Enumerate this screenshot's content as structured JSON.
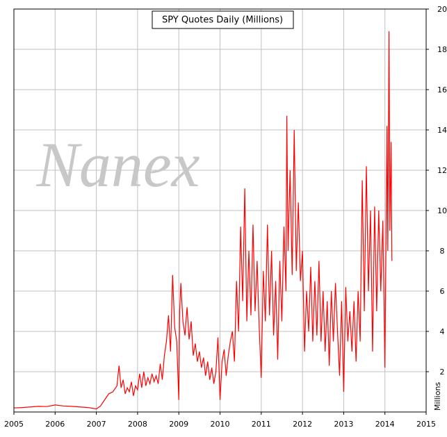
{
  "chart_data": {
    "type": "line",
    "title": "SPY Quotes Daily (Millions)",
    "watermark": "Nanex",
    "ylabel": "Millions",
    "color": "#ff0000",
    "grid": true,
    "xlim": [
      2005,
      2015
    ],
    "xticks": [
      2005,
      2006,
      2007,
      2008,
      2009,
      2010,
      2011,
      2012,
      2013,
      2014,
      2015
    ],
    "ylim": [
      0,
      20
    ],
    "yticks": [
      2,
      4,
      6,
      8,
      10,
      12,
      14,
      16,
      18,
      20
    ],
    "x": [
      2005.0,
      2005.2,
      2005.4,
      2005.6,
      2005.8,
      2006.0,
      2006.2,
      2006.4,
      2006.6,
      2006.8,
      2007.0,
      2007.1,
      2007.2,
      2007.3,
      2007.4,
      2007.5,
      2007.55,
      2007.6,
      2007.65,
      2007.7,
      2007.75,
      2007.8,
      2007.85,
      2007.9,
      2007.95,
      2008.0,
      2008.05,
      2008.1,
      2008.15,
      2008.2,
      2008.25,
      2008.3,
      2008.35,
      2008.4,
      2008.45,
      2008.5,
      2008.55,
      2008.6,
      2008.65,
      2008.7,
      2008.75,
      2008.8,
      2008.85,
      2008.9,
      2008.95,
      2009.0,
      2009.02,
      2009.05,
      2009.1,
      2009.15,
      2009.2,
      2009.25,
      2009.3,
      2009.35,
      2009.4,
      2009.45,
      2009.5,
      2009.55,
      2009.6,
      2009.65,
      2009.7,
      2009.75,
      2009.8,
      2009.85,
      2009.9,
      2009.95,
      2010.0,
      2010.05,
      2010.1,
      2010.15,
      2010.2,
      2010.25,
      2010.3,
      2010.35,
      2010.4,
      2010.45,
      2010.5,
      2010.55,
      2010.6,
      2010.65,
      2010.7,
      2010.75,
      2010.8,
      2010.85,
      2010.9,
      2010.95,
      2011.0,
      2011.05,
      2011.1,
      2011.15,
      2011.2,
      2011.25,
      2011.3,
      2011.35,
      2011.4,
      2011.45,
      2011.5,
      2011.55,
      2011.6,
      2011.62,
      2011.65,
      2011.7,
      2011.75,
      2011.8,
      2011.85,
      2011.9,
      2011.95,
      2012.0,
      2012.05,
      2012.1,
      2012.15,
      2012.2,
      2012.25,
      2012.3,
      2012.35,
      2012.4,
      2012.45,
      2012.5,
      2012.55,
      2012.6,
      2012.65,
      2012.7,
      2012.75,
      2012.8,
      2012.85,
      2012.9,
      2012.95,
      2013.0,
      2013.05,
      2013.1,
      2013.15,
      2013.2,
      2013.25,
      2013.3,
      2013.35,
      2013.4,
      2013.45,
      2013.5,
      2013.55,
      2013.6,
      2013.65,
      2013.7,
      2013.75,
      2013.8,
      2013.85,
      2013.9,
      2013.95,
      2014.0,
      2014.02,
      2014.05,
      2014.07,
      2014.1,
      2014.12,
      2014.15,
      2014.17
    ],
    "values": [
      0.2,
      0.22,
      0.25,
      0.28,
      0.27,
      0.35,
      0.3,
      0.28,
      0.25,
      0.22,
      0.15,
      0.3,
      0.6,
      0.9,
      1.0,
      1.3,
      2.3,
      1.2,
      1.6,
      0.9,
      1.2,
      1.0,
      1.5,
      0.8,
      1.3,
      1.1,
      1.9,
      1.2,
      2.0,
      1.3,
      1.7,
      1.4,
      1.9,
      1.5,
      1.8,
      1.4,
      2.4,
      1.6,
      2.8,
      3.5,
      4.8,
      3.0,
      6.8,
      4.2,
      3.5,
      0.6,
      5.0,
      6.4,
      4.5,
      3.8,
      5.2,
      3.6,
      4.5,
      2.8,
      3.4,
      2.5,
      3.0,
      2.2,
      2.7,
      1.8,
      2.5,
      1.6,
      2.2,
      1.4,
      2.0,
      3.7,
      0.6,
      2.5,
      3.1,
      1.8,
      2.8,
      3.5,
      4.0,
      2.5,
      6.5,
      4.0,
      9.2,
      5.5,
      11.1,
      4.5,
      8.0,
      4.8,
      9.3,
      5.0,
      7.5,
      4.2,
      1.7,
      7.0,
      4.5,
      9.3,
      4.8,
      8.0,
      3.8,
      6.5,
      2.6,
      7.5,
      4.5,
      9.2,
      6.0,
      14.7,
      8.0,
      12.0,
      6.8,
      14.0,
      7.0,
      10.4,
      6.5,
      8.0,
      3.0,
      6.0,
      4.0,
      7.2,
      3.5,
      6.5,
      3.8,
      7.5,
      3.5,
      6.0,
      3.0,
      5.5,
      2.3,
      6.0,
      3.5,
      6.4,
      4.0,
      1.8,
      5.5,
      1.0,
      6.2,
      3.5,
      5.0,
      3.0,
      5.5,
      2.5,
      6.0,
      3.5,
      11.5,
      5.0,
      12.2,
      6.0,
      10.0,
      3.0,
      10.2,
      5.0,
      10.0,
      6.0,
      9.5,
      2.2,
      7.0,
      14.2,
      8.0,
      18.9,
      9.0,
      13.4,
      7.5
    ]
  }
}
